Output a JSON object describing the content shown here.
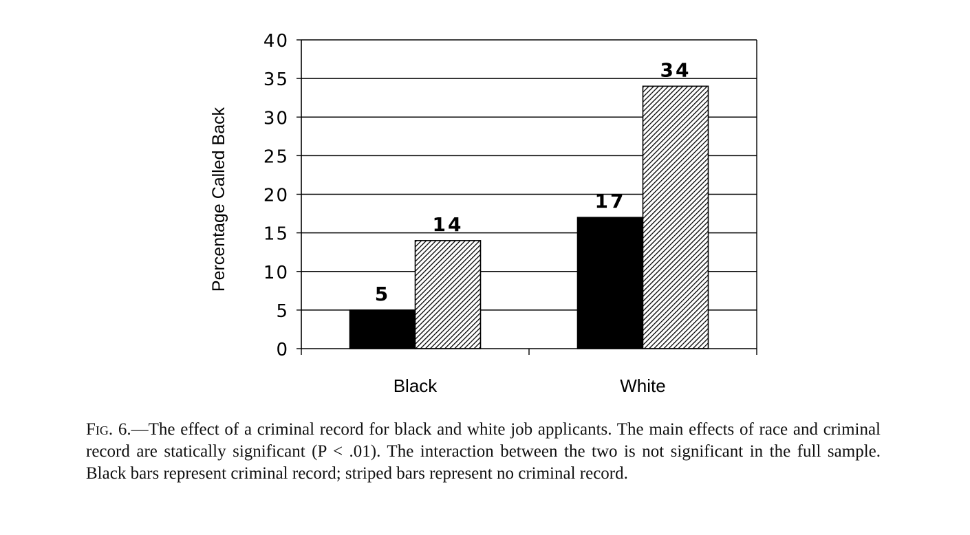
{
  "chart_data": {
    "type": "bar",
    "categories": [
      "Black",
      "White"
    ],
    "series": [
      {
        "values": [
          5,
          17
        ],
        "fill": "#000000",
        "pattern": "solid"
      },
      {
        "values": [
          14,
          34
        ],
        "fill": "#ffffff",
        "pattern": "diagonal-stripes"
      }
    ],
    "data_labels": [
      [
        "5",
        "17"
      ],
      [
        "14",
        "34"
      ]
    ],
    "xlabel": "",
    "ylabel": "Percentage Called Back",
    "ylim": [
      0,
      40
    ],
    "yticks": [
      0,
      5,
      10,
      15,
      20,
      25,
      30,
      35,
      40
    ],
    "grid": true,
    "legend": "none"
  },
  "caption": {
    "label": "Fig. 6.",
    "text": "—The effect of a criminal record for black and white job applicants. The main effects of race and criminal record are statically significant (P < .01). The interaction between the two is not significant in the full sample. Black bars represent criminal record; striped bars represent no criminal record."
  }
}
